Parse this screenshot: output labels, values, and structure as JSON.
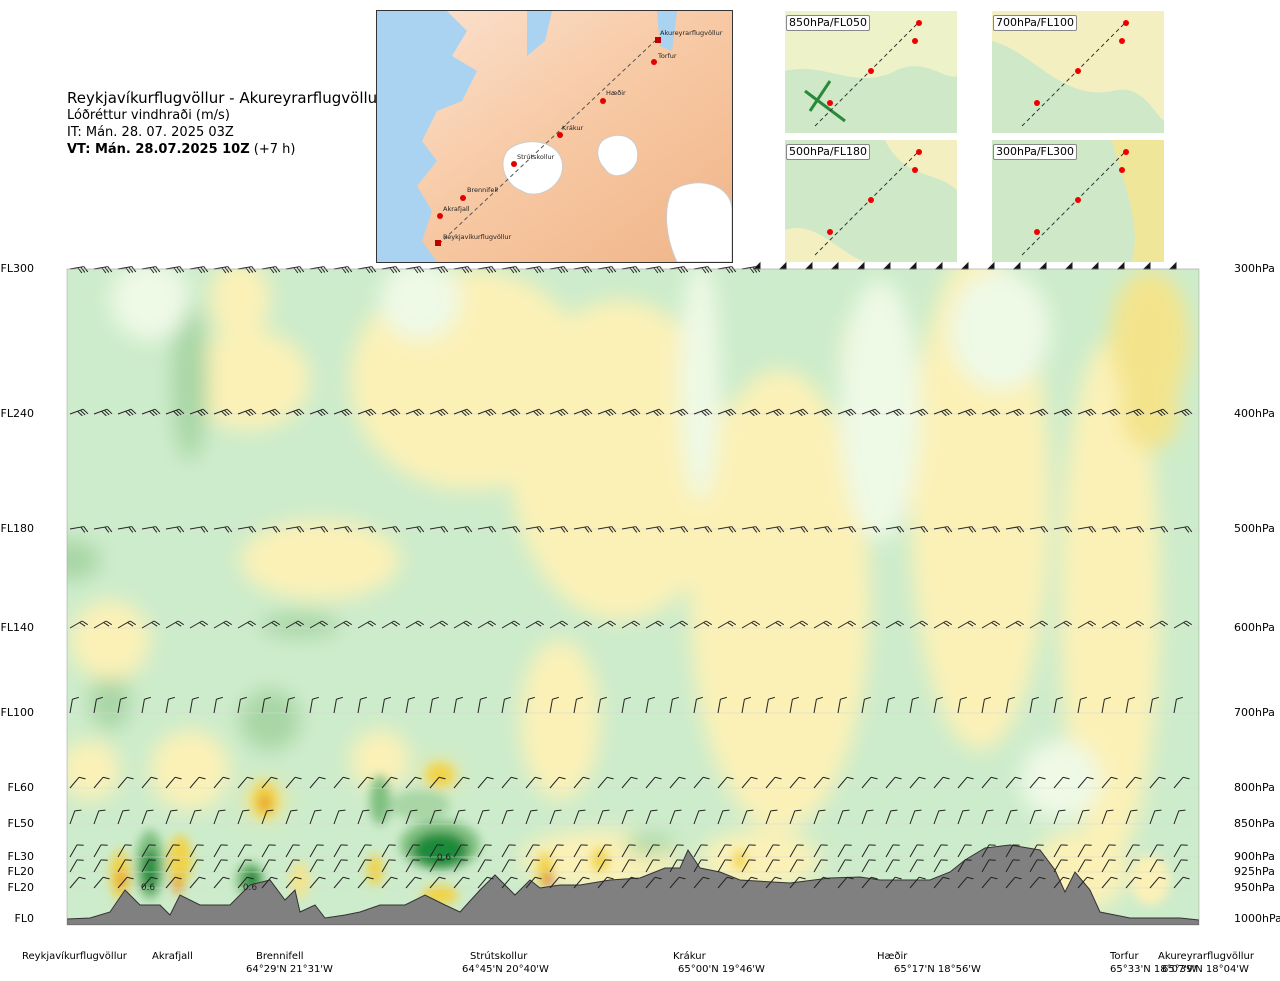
{
  "header": {
    "route": "Reykjavíkurflugvöllur - Akureyrarflugvöllur",
    "parameter": "Lóðréttur vindhraði (m/s)",
    "issue_time": "IT: Mán. 28. 07. 2025 03Z",
    "valid_time": "VT: Mán. 28.07.2025 10Z",
    "lead_time": "(+7 h)"
  },
  "map": {
    "waypoints": [
      {
        "name": "Akureyrarflugvöllur"
      },
      {
        "name": "Torfur"
      },
      {
        "name": "Hæðir"
      },
      {
        "name": "Krákur"
      },
      {
        "name": "Strútskollur"
      },
      {
        "name": "Brennifell"
      },
      {
        "name": "Akrafjall"
      },
      {
        "name": "Reykjavíkurflugvöllur"
      }
    ]
  },
  "mini_maps": [
    {
      "label": "850hPa/FL050"
    },
    {
      "label": "700hPa/FL100"
    },
    {
      "label": "500hPa/FL180"
    },
    {
      "label": "300hPa/FL300"
    }
  ],
  "chart_data": {
    "type": "heatmap",
    "title": "Lóðréttur vindhraði (m/s)",
    "left_axis_flight_levels": [
      "FL300",
      "FL240",
      "FL180",
      "FL140",
      "FL100",
      "FL60",
      "FL50",
      "FL30",
      "FL20",
      "FL20",
      "FL0"
    ],
    "right_axis_pressure": [
      "300hPa",
      "400hPa",
      "500hPa",
      "600hPa",
      "700hPa",
      "800hPa",
      "850hPa",
      "900hPa",
      "925hPa",
      "950hPa",
      "1000hPa"
    ],
    "levels_hpa": [
      300,
      400,
      500,
      600,
      700,
      800,
      850,
      900,
      925,
      950,
      1000
    ],
    "contour_value_labels": [
      "0.6",
      "0.6",
      "0.6"
    ],
    "route_points": [
      {
        "name": "Reykjavíkurflugvöllur",
        "coord": ""
      },
      {
        "name": "Akrafjall",
        "coord": ""
      },
      {
        "name": "Brennifell",
        "coord": "64°29'N 21°31'W"
      },
      {
        "name": "Strútskollur",
        "coord": "64°45'N 20°40'W"
      },
      {
        "name": "Krákur",
        "coord": "65°00'N 19°46'W"
      },
      {
        "name": "Hæðir",
        "coord": "65°17'N 18°56'W"
      },
      {
        "name": "Torfur",
        "coord": "65°33'N 18°07'W"
      },
      {
        "name": "Akureyrarflugvöllur",
        "coord": "65°39'N 18°04'W"
      }
    ],
    "colors": {
      "sink_strong": "#1f8a3a",
      "sink_medium": "#7fbf80",
      "sink_light": "#a8d6a5",
      "sink_weak": "#cdeccb",
      "neutral": "#ffffff",
      "near_zero": "#eef9e6",
      "rise_weak": "#fbf1b7",
      "rise_light": "#f3e48c",
      "rise_medium": "#f0d34a",
      "rise_strong": "#e8a030",
      "rise_core": "#d9643a",
      "terrain": "#808080"
    }
  }
}
